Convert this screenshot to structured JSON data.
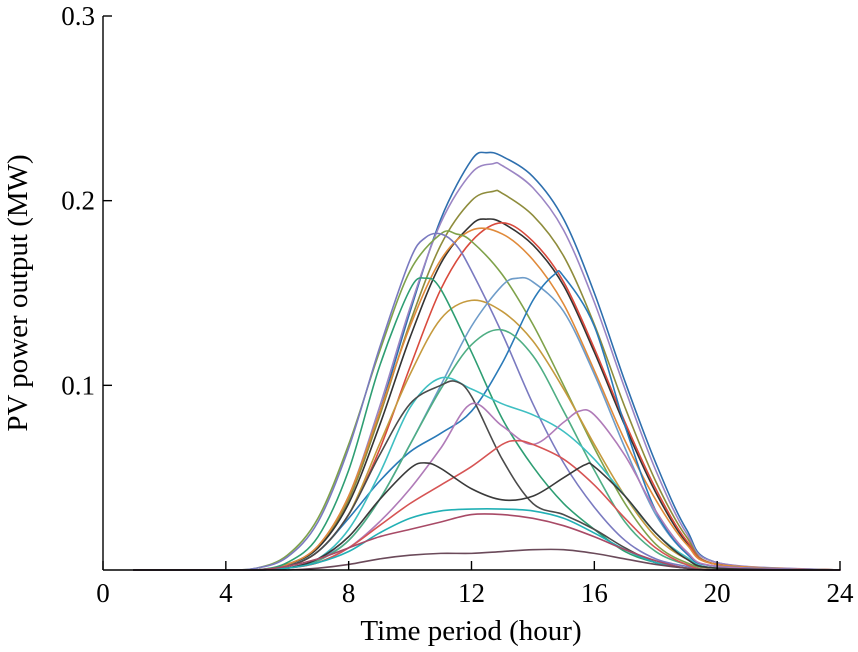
{
  "chart_data": {
    "type": "line",
    "title": "",
    "xlabel": "Time period (hour)",
    "ylabel": "PV power output (MW)",
    "xlim": [
      0,
      24
    ],
    "ylim": [
      0,
      0.3
    ],
    "xticks": [
      0,
      4,
      8,
      12,
      16,
      20,
      24
    ],
    "yticks": [
      0.1,
      0.2,
      0.3
    ],
    "xtick_labels": [
      "0",
      "4",
      "8",
      "12",
      "16",
      "20",
      "24"
    ],
    "ytick_labels": [
      "0.1",
      "0.2",
      "0.3"
    ],
    "grid": false,
    "legend": "none",
    "series": [
      {
        "color": "#2E6FAE",
        "x": [
          1,
          4,
          5,
          6,
          7,
          8,
          9,
          10,
          11,
          12,
          12.5,
          13,
          14,
          15,
          16,
          17,
          18,
          19,
          20,
          24
        ],
        "y": [
          0,
          0,
          0,
          0.003,
          0.012,
          0.038,
          0.085,
          0.14,
          0.19,
          0.222,
          0.226,
          0.224,
          0.213,
          0.19,
          0.15,
          0.102,
          0.058,
          0.022,
          0.004,
          0
        ]
      },
      {
        "color": "#9B85C4",
        "x": [
          1,
          4,
          5,
          6,
          7,
          8,
          9,
          10,
          11,
          12,
          12.7,
          13,
          14,
          15,
          16,
          17,
          18,
          19,
          20,
          24
        ],
        "y": [
          0,
          0,
          0,
          0.003,
          0.013,
          0.04,
          0.088,
          0.142,
          0.188,
          0.215,
          0.22,
          0.219,
          0.207,
          0.184,
          0.145,
          0.098,
          0.054,
          0.02,
          0.004,
          0
        ]
      },
      {
        "color": "#8E8C3C",
        "x": [
          1,
          4,
          5,
          6,
          7,
          8,
          9,
          10,
          11,
          12,
          12.7,
          13,
          14,
          15,
          16,
          17,
          18,
          19,
          20,
          24
        ],
        "y": [
          0,
          0,
          0,
          0.003,
          0.012,
          0.038,
          0.083,
          0.134,
          0.176,
          0.2,
          0.205,
          0.204,
          0.192,
          0.17,
          0.133,
          0.088,
          0.048,
          0.018,
          0.003,
          0
        ]
      },
      {
        "color": "#333333",
        "x": [
          1,
          4,
          5,
          6,
          7,
          8,
          9,
          10,
          11,
          12,
          12.5,
          13,
          14,
          15,
          16,
          17,
          18,
          19,
          20,
          24
        ],
        "y": [
          0,
          0,
          0,
          0.003,
          0.012,
          0.036,
          0.078,
          0.126,
          0.166,
          0.187,
          0.19,
          0.188,
          0.176,
          0.154,
          0.118,
          0.078,
          0.042,
          0.015,
          0.003,
          0
        ]
      },
      {
        "color": "#D94A3D",
        "x": [
          1,
          4,
          5,
          6,
          7,
          8,
          9,
          10,
          11,
          12,
          13,
          14,
          15,
          16,
          17,
          18,
          19,
          20,
          24
        ],
        "y": [
          0,
          0,
          0,
          0.002,
          0.01,
          0.03,
          0.065,
          0.11,
          0.152,
          0.178,
          0.188,
          0.178,
          0.156,
          0.12,
          0.08,
          0.044,
          0.016,
          0.003,
          0
        ]
      },
      {
        "color": "#E08A3A",
        "x": [
          1,
          4,
          5,
          6,
          7,
          8,
          9,
          10,
          11,
          12,
          13,
          14,
          15,
          16,
          17,
          18,
          19,
          20,
          24
        ],
        "y": [
          0,
          0,
          0,
          0.003,
          0.013,
          0.04,
          0.085,
          0.132,
          0.168,
          0.184,
          0.182,
          0.168,
          0.144,
          0.108,
          0.07,
          0.038,
          0.014,
          0.003,
          0
        ]
      },
      {
        "color": "#7FA24A",
        "x": [
          1,
          4,
          5,
          6,
          7,
          8,
          9,
          10,
          11,
          11.5,
          12,
          13,
          14,
          15,
          16,
          17,
          18,
          19,
          20,
          24
        ],
        "y": [
          0,
          0,
          0.001,
          0.008,
          0.028,
          0.068,
          0.118,
          0.162,
          0.182,
          0.182,
          0.178,
          0.16,
          0.133,
          0.1,
          0.066,
          0.036,
          0.014,
          0.004,
          0.001,
          0
        ]
      },
      {
        "color": "#7A7AC0",
        "x": [
          1,
          4,
          5,
          6,
          7,
          8,
          9,
          10,
          10.5,
          11,
          11.5,
          12,
          13,
          14,
          15,
          16,
          17,
          18,
          19,
          20,
          24
        ],
        "y": [
          0,
          0,
          0.001,
          0.007,
          0.026,
          0.066,
          0.12,
          0.168,
          0.18,
          0.182,
          0.176,
          0.162,
          0.128,
          0.09,
          0.058,
          0.034,
          0.016,
          0.006,
          0.002,
          0,
          0
        ]
      },
      {
        "color": "#C59A3E",
        "x": [
          1,
          4,
          5,
          6,
          7,
          8,
          9,
          10,
          11,
          12,
          13,
          14,
          15,
          16,
          17,
          18,
          19,
          20,
          24
        ],
        "y": [
          0,
          0,
          0,
          0.002,
          0.01,
          0.03,
          0.068,
          0.106,
          0.136,
          0.146,
          0.14,
          0.124,
          0.098,
          0.068,
          0.04,
          0.018,
          0.006,
          0.001,
          0
        ]
      },
      {
        "color": "#2E9E73",
        "x": [
          1,
          4,
          5,
          6,
          7,
          8,
          9,
          10,
          10.5,
          11,
          12,
          13,
          14,
          15,
          16,
          17,
          18,
          19,
          20,
          24
        ],
        "y": [
          0,
          0,
          0,
          0.004,
          0.018,
          0.054,
          0.11,
          0.152,
          0.158,
          0.152,
          0.118,
          0.082,
          0.056,
          0.036,
          0.022,
          0.01,
          0.004,
          0.001,
          0,
          0
        ]
      },
      {
        "color": "#6E9CC9",
        "x": [
          1,
          4,
          5,
          6,
          7,
          8,
          9,
          10,
          11,
          12,
          13,
          13.5,
          14,
          15,
          16,
          17,
          18,
          19,
          20,
          24
        ],
        "y": [
          0,
          0,
          0,
          0.001,
          0.006,
          0.016,
          0.038,
          0.068,
          0.1,
          0.132,
          0.154,
          0.158,
          0.156,
          0.14,
          0.106,
          0.066,
          0.03,
          0.009,
          0.002,
          0
        ]
      },
      {
        "color": "#2A7AB8",
        "x": [
          1,
          4,
          5,
          6,
          7,
          8,
          9,
          10,
          11,
          12,
          13,
          14,
          14.7,
          15,
          16,
          17,
          18,
          19,
          20,
          24
        ],
        "y": [
          0,
          0,
          0,
          0.002,
          0.01,
          0.028,
          0.048,
          0.064,
          0.074,
          0.086,
          0.112,
          0.146,
          0.16,
          0.159,
          0.132,
          0.078,
          0.032,
          0.009,
          0.002,
          0
        ]
      },
      {
        "color": "#4FAE84",
        "x": [
          1,
          4,
          5,
          6,
          7,
          8,
          9,
          10,
          11,
          12,
          13,
          14,
          15,
          16,
          17,
          18,
          19,
          20,
          24
        ],
        "y": [
          0,
          0,
          0,
          0.001,
          0.005,
          0.016,
          0.038,
          0.068,
          0.098,
          0.122,
          0.13,
          0.116,
          0.086,
          0.054,
          0.026,
          0.01,
          0.003,
          0,
          0
        ]
      },
      {
        "color": "#3FBFC2",
        "x": [
          1,
          4,
          5,
          6,
          7,
          8,
          9,
          10,
          11,
          12,
          13,
          14,
          15,
          16,
          17,
          18,
          19,
          20,
          24
        ],
        "y": [
          0,
          0,
          0,
          0.001,
          0.006,
          0.022,
          0.052,
          0.088,
          0.104,
          0.098,
          0.09,
          0.084,
          0.075,
          0.06,
          0.04,
          0.02,
          0.007,
          0.001,
          0
        ]
      },
      {
        "color": "#4B4B4B",
        "x": [
          1,
          4,
          5,
          6,
          7,
          8,
          9,
          10,
          11,
          11.5,
          12,
          13,
          14,
          15,
          16,
          17,
          18,
          19,
          20,
          24
        ],
        "y": [
          0,
          0,
          0,
          0.002,
          0.01,
          0.03,
          0.062,
          0.09,
          0.1,
          0.102,
          0.094,
          0.06,
          0.036,
          0.03,
          0.022,
          0.012,
          0.004,
          0.001,
          0,
          0
        ]
      },
      {
        "color": "#B07BB8",
        "x": [
          1,
          4,
          5,
          6,
          7,
          8,
          9,
          10,
          11,
          12,
          13,
          14,
          15,
          15.5,
          16,
          17,
          18,
          19,
          20,
          24
        ],
        "y": [
          0,
          0,
          0,
          0.001,
          0.004,
          0.012,
          0.026,
          0.044,
          0.066,
          0.09,
          0.078,
          0.068,
          0.08,
          0.086,
          0.084,
          0.062,
          0.032,
          0.01,
          0.002,
          0
        ]
      },
      {
        "color": "#D65454",
        "x": [
          1,
          4,
          5,
          6,
          7,
          8,
          9,
          10,
          11,
          12,
          13,
          13.5,
          14,
          15,
          16,
          17,
          18,
          19,
          20,
          24
        ],
        "y": [
          0,
          0,
          0,
          0.001,
          0.004,
          0.012,
          0.024,
          0.036,
          0.046,
          0.056,
          0.068,
          0.07,
          0.068,
          0.06,
          0.046,
          0.028,
          0.012,
          0.003,
          0,
          0
        ]
      },
      {
        "color": "#3A3A3A",
        "x": [
          1,
          4,
          5,
          6,
          7,
          8,
          9,
          10,
          10.5,
          11,
          12,
          13,
          14,
          15,
          15.7,
          16,
          17,
          18,
          19,
          20,
          24
        ],
        "y": [
          0,
          0,
          0,
          0.001,
          0.006,
          0.018,
          0.038,
          0.055,
          0.058,
          0.055,
          0.044,
          0.038,
          0.04,
          0.05,
          0.057,
          0.056,
          0.04,
          0.02,
          0.006,
          0.001,
          0
        ]
      },
      {
        "color": "#22B0B5",
        "x": [
          1,
          4,
          5,
          6,
          7,
          8,
          9,
          10,
          11,
          12,
          13,
          14,
          15,
          16,
          17,
          18,
          19,
          20,
          24
        ],
        "y": [
          0,
          0,
          0,
          0.001,
          0.004,
          0.01,
          0.02,
          0.028,
          0.032,
          0.033,
          0.033,
          0.032,
          0.028,
          0.02,
          0.011,
          0.004,
          0.001,
          0,
          0
        ]
      },
      {
        "color": "#A84A66",
        "x": [
          1,
          4,
          5,
          6,
          7,
          8,
          9,
          10,
          11,
          12,
          13,
          14,
          15,
          16,
          17,
          18,
          19,
          20,
          24
        ],
        "y": [
          0,
          0,
          0,
          0.002,
          0.006,
          0.012,
          0.018,
          0.022,
          0.026,
          0.03,
          0.03,
          0.028,
          0.024,
          0.018,
          0.011,
          0.005,
          0.001,
          0,
          0
        ]
      },
      {
        "color": "#6B4A5A",
        "x": [
          1,
          4,
          5,
          6,
          7,
          8,
          9,
          10,
          11,
          12,
          13,
          14,
          15,
          16,
          17,
          18,
          19,
          20,
          24
        ],
        "y": [
          0,
          0,
          0,
          0,
          0.001,
          0.003,
          0.006,
          0.008,
          0.009,
          0.009,
          0.01,
          0.011,
          0.011,
          0.009,
          0.006,
          0.003,
          0.001,
          0,
          0
        ]
      }
    ]
  }
}
